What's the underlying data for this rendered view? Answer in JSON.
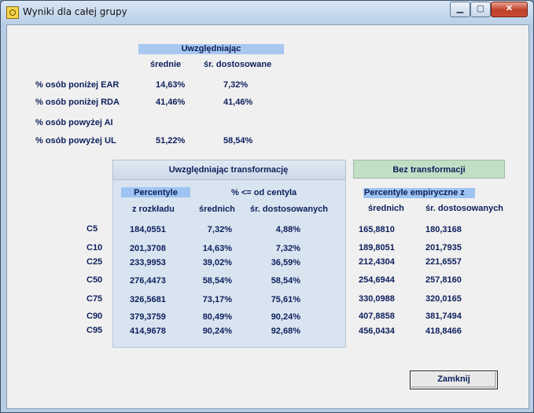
{
  "window": {
    "title": "Wyniki dla całej grupy"
  },
  "top_section": {
    "header": "Uwzględniając",
    "col1": "średnie",
    "col2": "śr. dostosowane",
    "rows": [
      {
        "label": "% osób poniżej EAR",
        "v1": "14,63%",
        "v2": "7,32%"
      },
      {
        "label": "% osób poniżej RDA",
        "v1": "41,46%",
        "v2": "41,46%"
      },
      {
        "label": "% osób powyżej AI",
        "v1": "",
        "v2": ""
      },
      {
        "label": "% osób powyżej UL",
        "v1": "51,22%",
        "v2": "58,54%"
      }
    ]
  },
  "transform_panel": {
    "title": "Uwzględniając transformację",
    "percentyle": "Percentyle",
    "z_rozkladu": "z rozkładu",
    "pct_header": "% <= od centyla",
    "sub1": "średnich",
    "sub2": "śr. dostosowanych"
  },
  "raw_panel": {
    "title": "Bez transformacji",
    "header": "Percentyle empiryczne z",
    "sub1": "średnich",
    "sub2": "śr. dostosowanych"
  },
  "percentiles": [
    {
      "label": "C5",
      "z": "184,0551",
      "s": "7,32%",
      "d": "4,88%",
      "es": "165,8810",
      "ed": "180,3168"
    },
    {
      "label": "C10",
      "z": "201,3708",
      "s": "14,63%",
      "d": "7,32%",
      "es": "189,8051",
      "ed": "201,7935"
    },
    {
      "label": "C25",
      "z": "233,9953",
      "s": "39,02%",
      "d": "36,59%",
      "es": "212,4304",
      "ed": "221,6557"
    },
    {
      "label": "C50",
      "z": "276,4473",
      "s": "58,54%",
      "d": "58,54%",
      "es": "254,6944",
      "ed": "257,8160"
    },
    {
      "label": "C75",
      "z": "326,5681",
      "s": "73,17%",
      "d": "75,61%",
      "es": "330,0988",
      "ed": "320,0165"
    },
    {
      "label": "C90",
      "z": "379,3759",
      "s": "80,49%",
      "d": "90,24%",
      "es": "407,8858",
      "ed": "381,7494"
    },
    {
      "label": "C95",
      "z": "414,9678",
      "s": "90,24%",
      "d": "92,68%",
      "es": "456,0434",
      "ed": "418,8466"
    }
  ],
  "buttons": {
    "close": "Zamknij"
  },
  "colors": {
    "accent": "#a8c8f0",
    "panel": "#d8e4f0",
    "green_header": "#c2dec4",
    "text": "#0d1f5c"
  }
}
